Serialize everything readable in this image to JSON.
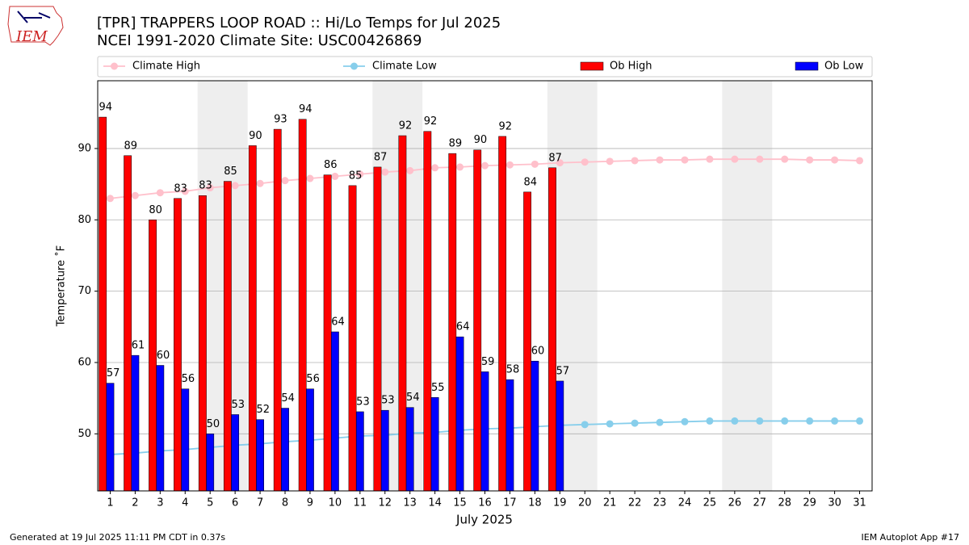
{
  "logo": "IEM",
  "footer_left": "Generated at 19 Jul 2025 11:11 PM CDT in 0.37s",
  "footer_right": "IEM Autoplot App #17",
  "chart_data": {
    "type": "bar",
    "title": "[TPR] TRAPPERS LOOP ROAD  :: Hi/Lo Temps for Jul 2025",
    "subtitle": "NCEI 1991-2020 Climate Site: USC00426869",
    "x_label": "July 2025",
    "y_label": "Temperature ˚F",
    "x": [
      1,
      2,
      3,
      4,
      5,
      6,
      7,
      8,
      9,
      10,
      11,
      12,
      13,
      14,
      15,
      16,
      17,
      18,
      19,
      20,
      21,
      22,
      23,
      24,
      25,
      26,
      27,
      28,
      29,
      30,
      31
    ],
    "xlim": [
      0.5,
      31.5
    ],
    "xticks": [
      1,
      2,
      3,
      4,
      5,
      6,
      7,
      8,
      9,
      10,
      11,
      12,
      13,
      14,
      15,
      16,
      17,
      18,
      19,
      20,
      21,
      22,
      23,
      24,
      25,
      26,
      27,
      28,
      29,
      30,
      31
    ],
    "ylim": [
      42,
      99.5
    ],
    "yticks": [
      50,
      60,
      70,
      80,
      90
    ],
    "grid": true,
    "shaded_spans": [
      [
        4.5,
        6.5
      ],
      [
        11.5,
        13.5
      ],
      [
        18.5,
        20.5
      ],
      [
        25.5,
        27.5
      ]
    ],
    "shade_color": "#eeeeee",
    "series": [
      {
        "name": "Climate High",
        "type": "line",
        "color": "#ffc0cb",
        "values": [
          83.0,
          83.4,
          83.8,
          84.0,
          84.5,
          84.8,
          85.1,
          85.5,
          85.8,
          86.1,
          86.4,
          86.7,
          86.9,
          87.3,
          87.4,
          87.6,
          87.7,
          87.8,
          88.0,
          88.1,
          88.2,
          88.3,
          88.4,
          88.4,
          88.5,
          88.5,
          88.5,
          88.5,
          88.4,
          88.4,
          88.3
        ]
      },
      {
        "name": "Climate Low",
        "type": "line",
        "color": "#87ceeb",
        "values": [
          47.1,
          47.3,
          47.6,
          47.8,
          48.1,
          48.4,
          48.6,
          48.9,
          49.1,
          49.4,
          49.7,
          49.8,
          50.1,
          50.2,
          50.5,
          50.7,
          50.8,
          51.0,
          51.2,
          51.3,
          51.4,
          51.5,
          51.6,
          51.7,
          51.8,
          51.8,
          51.8,
          51.8,
          51.8,
          51.8,
          51.8
        ]
      },
      {
        "name": "Ob High",
        "type": "bar",
        "color": "#ff0000",
        "values": [
          94.4,
          89.0,
          80.0,
          83.0,
          83.4,
          85.4,
          90.4,
          92.7,
          94.1,
          86.3,
          84.8,
          87.4,
          91.8,
          92.4,
          89.3,
          89.8,
          91.7,
          83.9,
          87.3,
          null,
          null,
          null,
          null,
          null,
          null,
          null,
          null,
          null,
          null,
          null,
          null
        ],
        "value_labels": [
          "94",
          "89",
          "80",
          "83",
          "83",
          "85",
          "90",
          "93",
          "94",
          "86",
          "85",
          "87",
          "92",
          "92",
          "89",
          "90",
          "92",
          "84",
          "87",
          null,
          null,
          null,
          null,
          null,
          null,
          null,
          null,
          null,
          null,
          null,
          null
        ]
      },
      {
        "name": "Ob Low",
        "type": "bar",
        "color": "#0000ff",
        "values": [
          57.1,
          61.0,
          59.6,
          56.3,
          50.0,
          52.7,
          52.0,
          53.6,
          56.3,
          64.3,
          53.1,
          53.3,
          53.7,
          55.1,
          63.6,
          58.7,
          57.6,
          60.2,
          57.4,
          null,
          null,
          null,
          null,
          null,
          null,
          null,
          null,
          null,
          null,
          null,
          null
        ],
        "value_labels": [
          "57",
          "61",
          "60",
          "56",
          "50",
          "53",
          "52",
          "54",
          "56",
          "64",
          "53",
          "53",
          "54",
          "55",
          "64",
          "59",
          "58",
          "60",
          "57",
          null,
          null,
          null,
          null,
          null,
          null,
          null,
          null,
          null,
          null,
          null,
          null
        ]
      }
    ]
  }
}
